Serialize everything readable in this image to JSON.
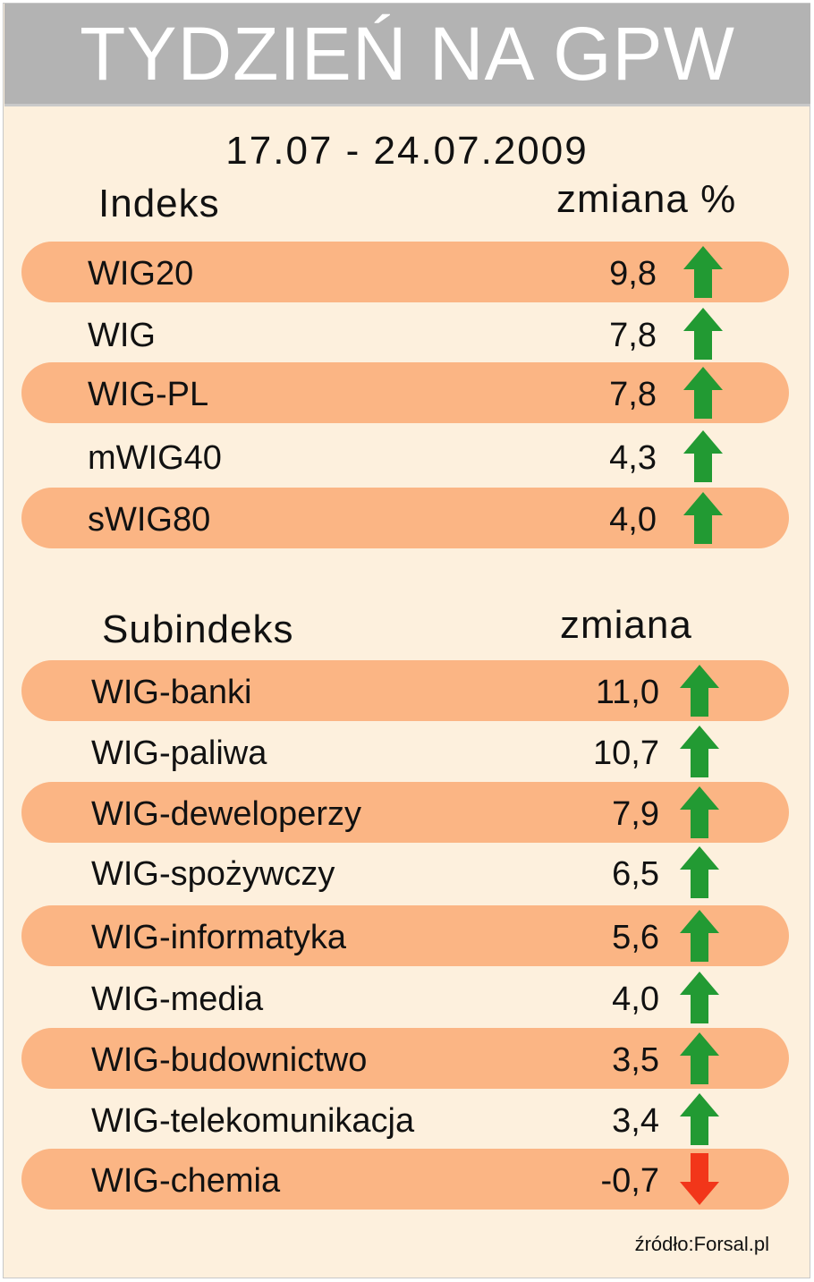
{
  "header": {
    "title": "TYDZIEŃ NA GPW",
    "date_range": "17.07 - 24.07.2009"
  },
  "source": "źródło:Forsal.pl",
  "colors": {
    "up_arrow": "#229a33",
    "down_arrow": "#f2361a",
    "band": "#fbb584",
    "background": "#fdf0dd",
    "header": "#b3b3b3"
  },
  "chart_data": [
    {
      "type": "table",
      "col_name_label": "Indeks",
      "col_value_label": "zmiana %",
      "rows": [
        {
          "name": "WIG20",
          "value": "9,8",
          "direction": "up"
        },
        {
          "name": "WIG",
          "value": "7,8",
          "direction": "up"
        },
        {
          "name": "WIG-PL",
          "value": "7,8",
          "direction": "up"
        },
        {
          "name": "mWIG40",
          "value": "4,3",
          "direction": "up"
        },
        {
          "name": "sWIG80",
          "value": "4,0",
          "direction": "up"
        }
      ]
    },
    {
      "type": "table",
      "col_name_label": "Subindeks",
      "col_value_label": "zmiana",
      "rows": [
        {
          "name": "WIG-banki",
          "value": "11,0",
          "direction": "up"
        },
        {
          "name": "WIG-paliwa",
          "value": "10,7",
          "direction": "up"
        },
        {
          "name": "WIG-deweloperzy",
          "value": "7,9",
          "direction": "up"
        },
        {
          "name": "WIG-spożywczy",
          "value": "6,5",
          "direction": "up"
        },
        {
          "name": "WIG-informatyka",
          "value": "5,6",
          "direction": "up"
        },
        {
          "name": "WIG-media",
          "value": "4,0",
          "direction": "up"
        },
        {
          "name": "WIG-budownictwo",
          "value": "3,5",
          "direction": "up"
        },
        {
          "name": "WIG-telekomunikacja",
          "value": "3,4",
          "direction": "up"
        },
        {
          "name": "WIG-chemia",
          "value": "-0,7",
          "direction": "down"
        }
      ]
    }
  ]
}
